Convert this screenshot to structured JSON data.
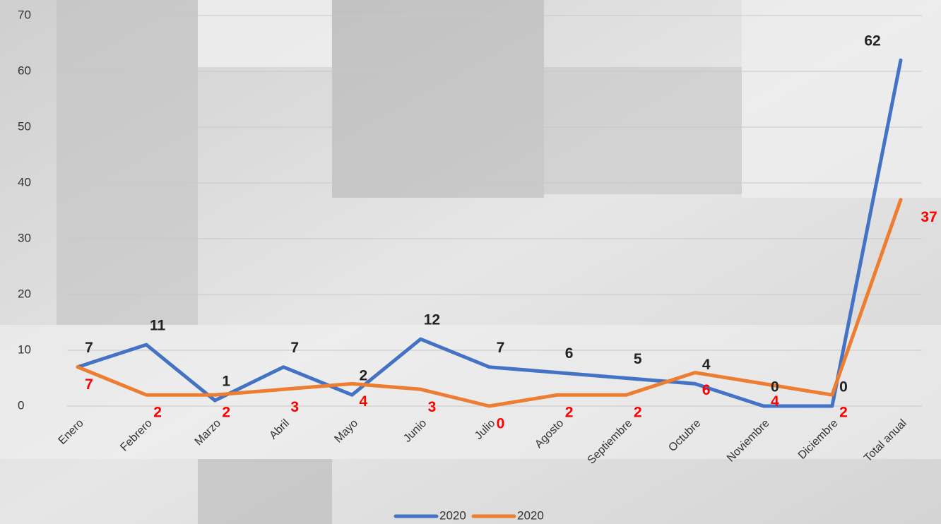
{
  "chart_data": {
    "type": "line",
    "categories": [
      "Enero",
      "Febrero",
      "Marzo",
      "Abril",
      "Mayo",
      "Junio",
      "Julio",
      "Agosto",
      "Septiembre",
      "Octubre",
      "Noviembre",
      "Diciembre",
      "Total anual"
    ],
    "series": [
      {
        "name": "2020",
        "color": "#4472c4",
        "label_color": "#222222",
        "values": [
          7,
          11,
          1,
          7,
          2,
          12,
          7,
          6,
          5,
          4,
          0,
          0,
          62
        ]
      },
      {
        "name": "2020",
        "color": "#ed7d31",
        "label_color": "#ff0000",
        "values": [
          7,
          2,
          2,
          3,
          4,
          3,
          0,
          2,
          2,
          6,
          4,
          2,
          37
        ]
      }
    ],
    "ylim": [
      0,
      70
    ],
    "yticks": [
      0,
      10,
      20,
      30,
      40,
      50,
      60,
      70
    ],
    "grid": true,
    "legend": "bottom"
  }
}
